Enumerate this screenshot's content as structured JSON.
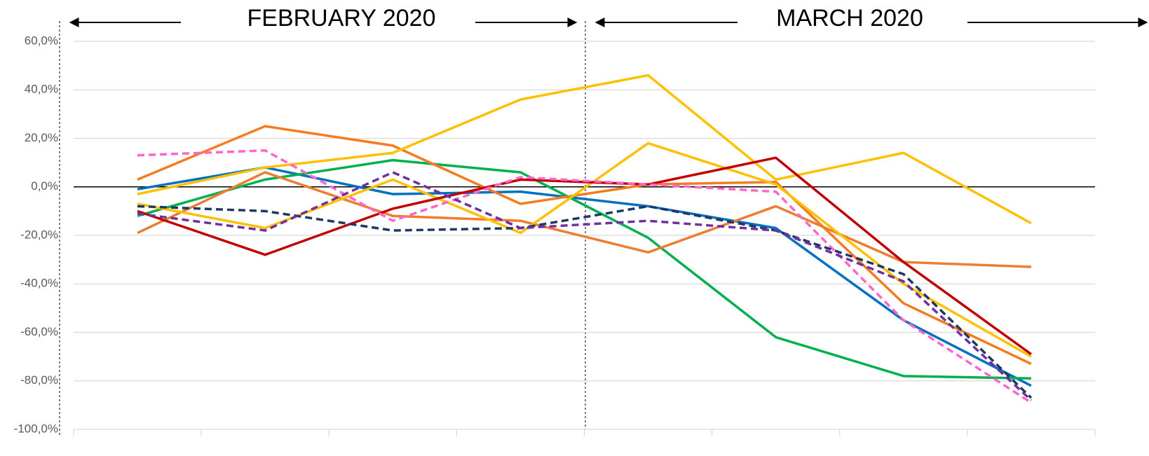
{
  "chart_data": {
    "type": "line",
    "annotations": [
      "FEBRUARY 2020",
      "MARCH 2020"
    ],
    "categories": [
      null,
      null,
      null,
      null,
      null,
      null,
      null,
      null
    ],
    "series": [
      {
        "color": "#0070c0",
        "dashed": false,
        "values": [
          -1,
          8,
          -3,
          -2,
          -8,
          -17,
          -55,
          -82
        ]
      },
      {
        "color": "#00b050",
        "dashed": false,
        "values": [
          -12,
          3,
          11,
          6,
          -21,
          -62,
          -78,
          -79
        ]
      },
      {
        "color": "#f47b20",
        "dashed": false,
        "values": [
          3,
          25,
          17,
          -7,
          1,
          2,
          -48,
          -73
        ]
      },
      {
        "color": "#ed7d31",
        "dashed": false,
        "values": [
          -19,
          6,
          -12,
          -14,
          -27,
          -8,
          -31,
          -33
        ]
      },
      {
        "color": "#ffc000",
        "dashed": false,
        "values": [
          -3,
          8,
          14,
          36,
          46,
          3,
          14,
          -15
        ]
      },
      {
        "color": "#ffc000",
        "dashed": false,
        "values": [
          -7,
          -17,
          3,
          -19,
          18,
          1,
          -40,
          -70
        ]
      },
      {
        "color": "#c00000",
        "dashed": false,
        "values": [
          -10,
          -28,
          -9,
          3,
          1,
          12,
          -31,
          -69
        ]
      },
      {
        "color": "#ff66cc",
        "dashed": true,
        "values": [
          13,
          15,
          -14,
          4,
          1,
          -2,
          -55,
          -89
        ]
      },
      {
        "color": "#1f3864",
        "dashed": true,
        "values": [
          -8,
          -10,
          -18,
          -17,
          -8,
          -18,
          -36,
          -87
        ]
      },
      {
        "color": "#7030a0",
        "dashed": true,
        "values": [
          -11,
          -18,
          6,
          -17,
          -14,
          -18,
          -39,
          -88
        ]
      }
    ],
    "ylim": [
      -100,
      60
    ],
    "yticks": [
      {
        "value": -100,
        "label": "-100,0%"
      },
      {
        "value": -80,
        "label": "-80,0%"
      },
      {
        "value": -60,
        "label": "-60,0%"
      },
      {
        "value": -40,
        "label": "-40,0%"
      },
      {
        "value": -20,
        "label": "-20,0%"
      },
      {
        "value": 0,
        "label": "0,0%"
      },
      {
        "value": 20,
        "label": "20,0%"
      },
      {
        "value": 40,
        "label": "40,0%"
      },
      {
        "value": 60,
        "label": "60,0%"
      }
    ],
    "grid": true
  }
}
